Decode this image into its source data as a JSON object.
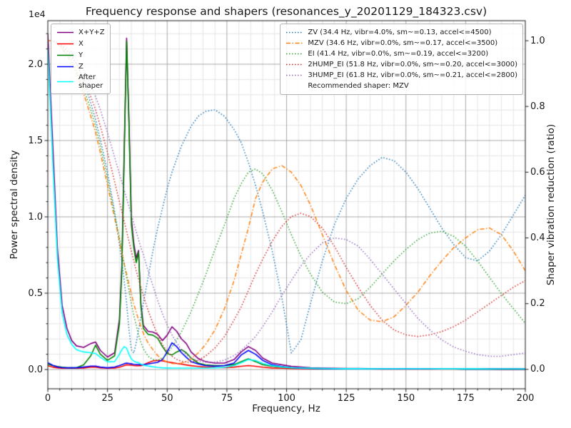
{
  "chart_data": {
    "type": "line",
    "title": "Frequency response and shapers (resonances_y_20201129_184323.csv)",
    "xlabel": "Frequency, Hz",
    "ylabel_left": "Power spectral density",
    "ylabel_right": "Shaper vibration reduction (ratio)",
    "y_left_offset_text": "1e4",
    "xlim": [
      0,
      200
    ],
    "ylim_left": [
      -1261,
      22851
    ],
    "ylim_right": [
      -0.059,
      1.061
    ],
    "x_ticks": [
      0,
      25,
      50,
      75,
      100,
      125,
      150,
      175,
      200
    ],
    "x_tick_labels": [
      "0",
      "25",
      "50",
      "75",
      "100",
      "125",
      "150",
      "175",
      "200"
    ],
    "y_left_ticks": [
      0,
      5000,
      10000,
      15000,
      20000
    ],
    "y_left_tick_labels": [
      "0.0",
      "0.5",
      "1.0",
      "1.5",
      "2.0"
    ],
    "y_right_ticks": [
      0,
      0.2,
      0.4,
      0.6,
      0.8,
      1.0
    ],
    "y_right_tick_labels": [
      "0.0",
      "0.2",
      "0.4",
      "0.6",
      "0.8",
      "1.0"
    ],
    "x_minor_step": 5,
    "y_left_minor_step": 1000,
    "grid": {
      "major_color": "#a9a9a9",
      "minor_color": "#e6e6e6"
    },
    "legend_position_left": "upper left",
    "legend_position_right": "upper right",
    "x": [
      0,
      2,
      4,
      6,
      8,
      10,
      12,
      15,
      18,
      20,
      22,
      25,
      28,
      30,
      31,
      32,
      33,
      34,
      35,
      36,
      37,
      38,
      39,
      40,
      42,
      44,
      46,
      48,
      50,
      52,
      54,
      56,
      58,
      60,
      63,
      66,
      70,
      74,
      78,
      81,
      84,
      87,
      90,
      94,
      98,
      102,
      106,
      110,
      115,
      120,
      125,
      130,
      135,
      140,
      145,
      150,
      155,
      160,
      165,
      170,
      175,
      180,
      185,
      190,
      195,
      200
    ],
    "psd_series": [
      {
        "name": "X+Y+Z",
        "color": "#800080",
        "values": [
          22000,
          15000,
          8000,
          4200,
          2700,
          1900,
          1550,
          1450,
          1700,
          1800,
          1250,
          820,
          1100,
          3300,
          6800,
          14500,
          21700,
          16300,
          9900,
          8300,
          7300,
          7800,
          4300,
          2900,
          2500,
          2450,
          2300,
          1900,
          2250,
          2800,
          2500,
          2000,
          1700,
          1150,
          720,
          520,
          420,
          420,
          650,
          1150,
          1500,
          1250,
          750,
          420,
          310,
          210,
          160,
          110,
          90,
          80,
          70,
          65,
          60,
          55,
          50,
          50,
          45,
          45,
          40,
          40,
          40,
          35,
          35,
          30,
          30,
          30
        ]
      },
      {
        "name": "X",
        "color": "#ff0000",
        "values": [
          250,
          160,
          110,
          90,
          80,
          80,
          80,
          100,
          150,
          160,
          110,
          85,
          100,
          150,
          200,
          260,
          310,
          300,
          280,
          260,
          250,
          250,
          250,
          300,
          450,
          560,
          600,
          560,
          500,
          450,
          400,
          350,
          300,
          250,
          200,
          160,
          130,
          120,
          160,
          210,
          260,
          210,
          150,
          100,
          80,
          60,
          55,
          50,
          45,
          40,
          40,
          35,
          35,
          30,
          30,
          30,
          28,
          28,
          25,
          25,
          25,
          22,
          22,
          20,
          20,
          20
        ]
      },
      {
        "name": "Y",
        "color": "#008000",
        "values": [
          350,
          260,
          200,
          150,
          120,
          110,
          120,
          300,
          900,
          1600,
          1000,
          600,
          900,
          3000,
          6400,
          14000,
          21500,
          16000,
          9500,
          8000,
          7000,
          7700,
          4100,
          2700,
          2300,
          2250,
          2050,
          1500,
          1050,
          950,
          1150,
          1300,
          1100,
          750,
          420,
          300,
          260,
          260,
          320,
          520,
          700,
          520,
          320,
          210,
          160,
          110,
          90,
          70,
          60,
          55,
          50,
          50,
          45,
          45,
          40,
          40,
          38,
          38,
          35,
          35,
          32,
          32,
          30,
          30,
          28,
          28
        ]
      },
      {
        "name": "Z",
        "color": "#0000ff",
        "values": [
          450,
          280,
          170,
          120,
          110,
          110,
          110,
          160,
          220,
          220,
          160,
          110,
          160,
          260,
          320,
          380,
          420,
          400,
          370,
          340,
          330,
          330,
          310,
          310,
          360,
          420,
          470,
          650,
          1150,
          1750,
          1500,
          1100,
          800,
          520,
          360,
          260,
          210,
          260,
          420,
          950,
          1250,
          1000,
          600,
          310,
          200,
          130,
          90,
          70,
          60,
          55,
          50,
          50,
          45,
          45,
          40,
          40,
          38,
          38,
          35,
          35,
          32,
          32,
          30,
          30,
          28,
          28
        ]
      }
    ],
    "after_shaper": {
      "name": "After shaper",
      "name_lines": [
        "After",
        "shaper"
      ],
      "color": "#00ffff",
      "values": [
        21000,
        13800,
        7300,
        3700,
        2300,
        1650,
        1300,
        1150,
        1100,
        1050,
        800,
        500,
        520,
        1000,
        1300,
        1500,
        1400,
        1000,
        700,
        550,
        480,
        450,
        350,
        290,
        230,
        180,
        140,
        110,
        100,
        95,
        95,
        95,
        95,
        95,
        95,
        95,
        110,
        140,
        260,
        450,
        650,
        600,
        400,
        250,
        170,
        120,
        100,
        85,
        70,
        60,
        55,
        55,
        50,
        50,
        48,
        48,
        45,
        45,
        42,
        42,
        40,
        40,
        38,
        38,
        35,
        35
      ]
    },
    "shaper_series": [
      {
        "name": "ZV",
        "label": "ZV (34.4 Hz, vibr=4.0%, sm~=0.13, accel<=4500)",
        "color": "#1f77b4",
        "dash": [
          1.5,
          2.5
        ],
        "values": [
          1.0,
          1.0,
          0.99,
          0.985,
          0.97,
          0.955,
          0.93,
          0.88,
          0.81,
          0.76,
          0.7,
          0.6,
          0.48,
          0.38,
          0.33,
          0.27,
          0.2,
          0.12,
          0.06,
          0.05,
          0.08,
          0.12,
          0.16,
          0.2,
          0.28,
          0.36,
          0.43,
          0.49,
          0.55,
          0.6,
          0.64,
          0.68,
          0.71,
          0.74,
          0.77,
          0.785,
          0.79,
          0.77,
          0.73,
          0.69,
          0.63,
          0.56,
          0.48,
          0.36,
          0.22,
          0.05,
          0.09,
          0.2,
          0.33,
          0.44,
          0.52,
          0.58,
          0.62,
          0.645,
          0.635,
          0.6,
          0.55,
          0.49,
          0.43,
          0.38,
          0.34,
          0.33,
          0.36,
          0.41,
          0.47,
          0.53
        ]
      },
      {
        "name": "MZV",
        "label": "MZV (34.6 Hz, vibr=0.0%, sm~=0.17, accel<=3500)",
        "color": "#ff7f0e",
        "dash": [
          6,
          2.5,
          1.5,
          2.5
        ],
        "values": [
          1.0,
          1.0,
          0.99,
          0.975,
          0.955,
          0.93,
          0.9,
          0.84,
          0.77,
          0.72,
          0.66,
          0.56,
          0.46,
          0.39,
          0.355,
          0.32,
          0.29,
          0.26,
          0.23,
          0.2,
          0.175,
          0.15,
          0.13,
          0.11,
          0.08,
          0.06,
          0.042,
          0.03,
          0.022,
          0.018,
          0.017,
          0.019,
          0.024,
          0.032,
          0.05,
          0.075,
          0.12,
          0.185,
          0.27,
          0.35,
          0.43,
          0.52,
          0.57,
          0.61,
          0.62,
          0.6,
          0.56,
          0.5,
          0.41,
          0.32,
          0.24,
          0.18,
          0.15,
          0.145,
          0.16,
          0.195,
          0.235,
          0.285,
          0.33,
          0.37,
          0.4,
          0.425,
          0.43,
          0.41,
          0.36,
          0.3
        ]
      },
      {
        "name": "EI",
        "label": "EI (41.4 Hz, vibr=0.0%, sm~=0.19, accel<=3200)",
        "color": "#2ca02c",
        "dash": [
          1.5,
          2.5
        ],
        "values": [
          1.0,
          1.0,
          0.99,
          0.98,
          0.96,
          0.94,
          0.91,
          0.855,
          0.79,
          0.74,
          0.68,
          0.58,
          0.47,
          0.4,
          0.36,
          0.32,
          0.28,
          0.24,
          0.2,
          0.165,
          0.135,
          0.105,
          0.082,
          0.063,
          0.04,
          0.03,
          0.028,
          0.033,
          0.048,
          0.068,
          0.09,
          0.115,
          0.145,
          0.175,
          0.23,
          0.285,
          0.365,
          0.44,
          0.52,
          0.565,
          0.6,
          0.61,
          0.595,
          0.545,
          0.48,
          0.41,
          0.345,
          0.29,
          0.235,
          0.205,
          0.2,
          0.215,
          0.25,
          0.29,
          0.33,
          0.365,
          0.395,
          0.415,
          0.42,
          0.405,
          0.375,
          0.33,
          0.28,
          0.23,
          0.185,
          0.14
        ]
      },
      {
        "name": "2HUMP_EI",
        "label": "2HUMP_EI (51.8 Hz, vibr=0.0%, sm~=0.20, accel<=3000)",
        "color": "#d62728",
        "dash": [
          1.5,
          2.5
        ],
        "values": [
          1.0,
          1.0,
          0.995,
          0.985,
          0.97,
          0.95,
          0.93,
          0.885,
          0.83,
          0.79,
          0.74,
          0.66,
          0.57,
          0.51,
          0.48,
          0.45,
          0.42,
          0.39,
          0.36,
          0.33,
          0.3,
          0.275,
          0.25,
          0.225,
          0.18,
          0.14,
          0.105,
          0.075,
          0.055,
          0.04,
          0.03,
          0.025,
          0.022,
          0.022,
          0.028,
          0.04,
          0.065,
          0.1,
          0.15,
          0.19,
          0.24,
          0.29,
          0.335,
          0.39,
          0.435,
          0.465,
          0.475,
          0.465,
          0.43,
          0.375,
          0.31,
          0.25,
          0.195,
          0.15,
          0.12,
          0.105,
          0.1,
          0.105,
          0.115,
          0.13,
          0.15,
          0.175,
          0.2,
          0.225,
          0.25,
          0.27
        ]
      },
      {
        "name": "3HUMP_EI",
        "label": "3HUMP_EI (61.8 Hz, vibr=0.0%, sm~=0.21, accel<=2800)",
        "color": "#9467bd",
        "dash": [
          1.5,
          2.5
        ],
        "values": [
          1.0,
          1.0,
          0.995,
          0.99,
          0.98,
          0.965,
          0.945,
          0.91,
          0.865,
          0.83,
          0.79,
          0.72,
          0.645,
          0.595,
          0.57,
          0.545,
          0.52,
          0.495,
          0.47,
          0.445,
          0.42,
          0.395,
          0.37,
          0.35,
          0.3,
          0.255,
          0.21,
          0.17,
          0.135,
          0.105,
          0.08,
          0.06,
          0.045,
          0.035,
          0.026,
          0.022,
          0.022,
          0.028,
          0.042,
          0.058,
          0.078,
          0.1,
          0.13,
          0.175,
          0.225,
          0.27,
          0.315,
          0.35,
          0.385,
          0.4,
          0.395,
          0.375,
          0.335,
          0.29,
          0.245,
          0.2,
          0.155,
          0.12,
          0.09,
          0.068,
          0.055,
          0.045,
          0.04,
          0.04,
          0.045,
          0.05
        ]
      }
    ],
    "recommended_text": "Recommended shaper: MZV"
  }
}
